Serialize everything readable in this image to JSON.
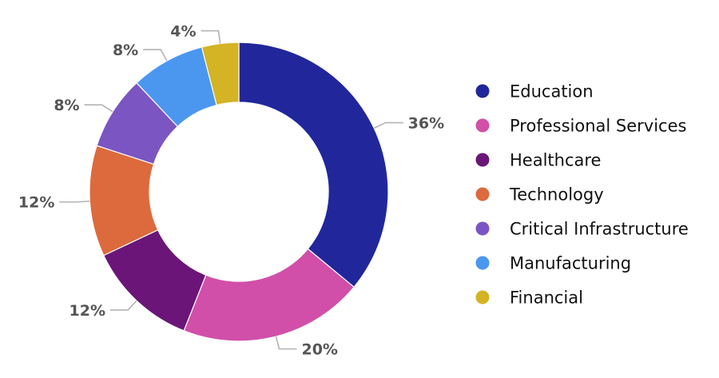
{
  "chart_data": {
    "type": "pie",
    "variant": "donut",
    "title": "",
    "legend_position": "right",
    "slices": [
      {
        "label": "Education",
        "value": 36,
        "display": "36%",
        "color": "#21279b"
      },
      {
        "label": "Professional Services",
        "value": 20,
        "display": "20%",
        "color": "#d14fa9"
      },
      {
        "label": "Healthcare",
        "value": 12,
        "display": "12%",
        "color": "#6b1578"
      },
      {
        "label": "Technology",
        "value": 12,
        "display": "12%",
        "color": "#dc6a3c"
      },
      {
        "label": "Critical Infrastructure",
        "value": 8,
        "display": "8%",
        "color": "#7b55c2"
      },
      {
        "label": "Manufacturing",
        "value": 8,
        "display": "8%",
        "color": "#4b97f0"
      },
      {
        "label": "Financial",
        "value": 4,
        "display": "4%",
        "color": "#d4b324"
      }
    ]
  }
}
